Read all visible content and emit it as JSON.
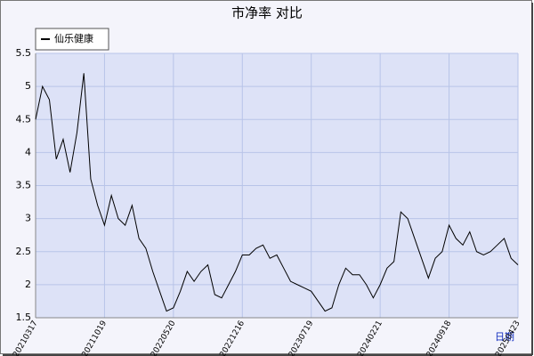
{
  "chart_data": {
    "type": "line",
    "title": "市净率  对比",
    "x_label": "日期",
    "categories": [
      "20210317",
      null,
      null,
      null,
      null,
      null,
      null,
      null,
      null,
      null,
      "20211019",
      null,
      null,
      null,
      null,
      null,
      null,
      null,
      null,
      null,
      "20220520",
      null,
      null,
      null,
      null,
      null,
      null,
      null,
      null,
      null,
      "20221216",
      null,
      null,
      null,
      null,
      null,
      null,
      null,
      null,
      null,
      "20230719",
      null,
      null,
      null,
      null,
      null,
      null,
      null,
      null,
      null,
      "20240221",
      null,
      null,
      null,
      null,
      null,
      null,
      null,
      null,
      null,
      "20240918",
      null,
      null,
      null,
      null,
      null,
      null,
      null,
      null,
      null,
      "20250423"
    ],
    "series": [
      {
        "name": "仙乐健康",
        "color": "#000000",
        "values": [
          4.5,
          5.0,
          4.8,
          3.9,
          4.2,
          3.7,
          4.3,
          5.2,
          3.6,
          3.2,
          2.9,
          3.35,
          3.0,
          2.9,
          3.2,
          2.7,
          2.55,
          2.2,
          1.9,
          1.6,
          1.65,
          1.9,
          2.2,
          2.05,
          2.2,
          2.3,
          1.85,
          1.8,
          2.0,
          2.2,
          2.45,
          2.45,
          2.55,
          2.6,
          2.4,
          2.45,
          2.25,
          2.05,
          2.0,
          1.95,
          1.9,
          1.75,
          1.6,
          1.65,
          2.0,
          2.25,
          2.15,
          2.15,
          2.0,
          1.8,
          2.0,
          2.25,
          2.35,
          3.1,
          3.0,
          2.7,
          2.4,
          2.1,
          2.4,
          2.5,
          2.9,
          2.7,
          2.6,
          2.8,
          2.5,
          2.45,
          2.5,
          2.6,
          2.7,
          2.4,
          2.3
        ]
      }
    ],
    "ylim": [
      1.5,
      5.5
    ],
    "yticks": [
      1.5,
      2.0,
      2.5,
      3.0,
      3.5,
      4.0,
      4.5,
      5.0,
      5.5
    ],
    "grid": true,
    "legend": "top-left"
  }
}
